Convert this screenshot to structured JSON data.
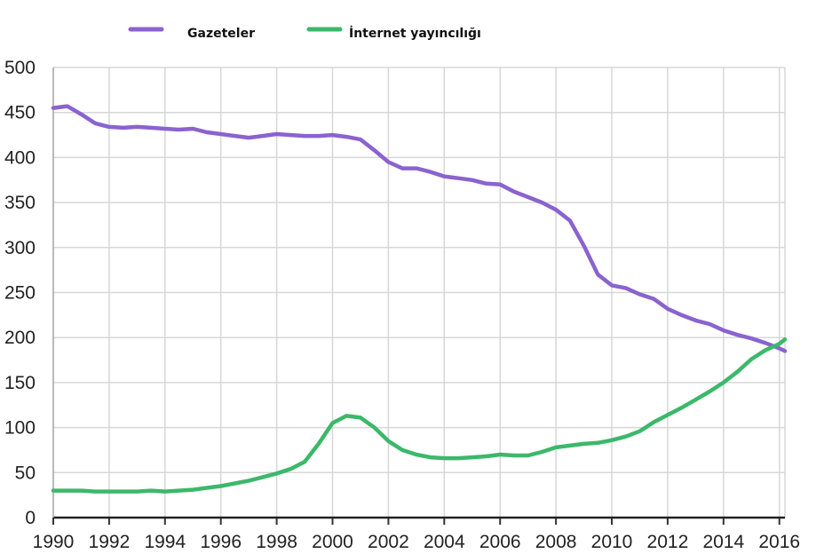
{
  "chart_data": {
    "type": "line",
    "title": "",
    "xlabel": "",
    "ylabel": "",
    "xlim": [
      1990,
      2016.2
    ],
    "ylim": [
      0,
      500
    ],
    "x_ticks": [
      1990,
      1992,
      1994,
      1996,
      1998,
      2000,
      2002,
      2004,
      2006,
      2008,
      2010,
      2012,
      2014,
      2016
    ],
    "y_ticks": [
      0,
      50,
      100,
      150,
      200,
      250,
      300,
      350,
      400,
      450,
      500
    ],
    "grid": true,
    "legend_position": "top",
    "series": [
      {
        "name": "Gazeteler",
        "color": "#8a63cf",
        "x": [
          1990,
          1990.5,
          1991,
          1991.5,
          1992,
          1992.5,
          1993,
          1993.5,
          1994,
          1994.5,
          1995,
          1995.5,
          1996,
          1996.5,
          1997,
          1997.5,
          1998,
          1998.5,
          1999,
          1999.5,
          2000,
          2000.5,
          2001,
          2001.5,
          2002,
          2002.5,
          2003,
          2003.5,
          2004,
          2004.5,
          2005,
          2005.5,
          2006,
          2006.5,
          2007,
          2007.5,
          2008,
          2008.5,
          2009,
          2009.5,
          2010,
          2010.5,
          2011,
          2011.5,
          2012,
          2012.5,
          2013,
          2013.5,
          2014,
          2014.5,
          2015,
          2015.5,
          2016,
          2016.2
        ],
        "y": [
          455,
          457,
          448,
          438,
          434,
          433,
          434,
          433,
          432,
          431,
          432,
          428,
          426,
          424,
          422,
          424,
          426,
          425,
          424,
          424,
          425,
          423,
          420,
          408,
          395,
          388,
          388,
          384,
          379,
          377,
          375,
          371,
          370,
          362,
          356,
          350,
          342,
          330,
          302,
          270,
          258,
          255,
          248,
          243,
          232,
          225,
          219,
          215,
          208,
          203,
          199,
          194,
          188,
          185
        ]
      },
      {
        "name": "İnternet yayıncılığı",
        "color": "#3cb86a",
        "x": [
          1990,
          1990.5,
          1991,
          1991.5,
          1992,
          1992.5,
          1993,
          1993.5,
          1994,
          1994.5,
          1995,
          1995.5,
          1996,
          1996.5,
          1997,
          1997.5,
          1998,
          1998.5,
          1999,
          1999.5,
          2000,
          2000.5,
          2001,
          2001.5,
          2002,
          2002.5,
          2003,
          2003.5,
          2004,
          2004.5,
          2005,
          2005.5,
          2006,
          2006.5,
          2007,
          2007.5,
          2008,
          2008.5,
          2009,
          2009.5,
          2010,
          2010.5,
          2011,
          2011.5,
          2012,
          2012.5,
          2013,
          2013.5,
          2014,
          2014.5,
          2015,
          2015.5,
          2016,
          2016.2
        ],
        "y": [
          30,
          30,
          30,
          29,
          29,
          29,
          29,
          30,
          29,
          30,
          31,
          33,
          35,
          38,
          41,
          45,
          49,
          54,
          62,
          82,
          105,
          113,
          111,
          100,
          85,
          75,
          70,
          67,
          66,
          66,
          67,
          68,
          70,
          69,
          69,
          73,
          78,
          80,
          82,
          83,
          86,
          90,
          96,
          106,
          114,
          122,
          131,
          140,
          150,
          162,
          176,
          186,
          193,
          198
        ]
      }
    ]
  }
}
